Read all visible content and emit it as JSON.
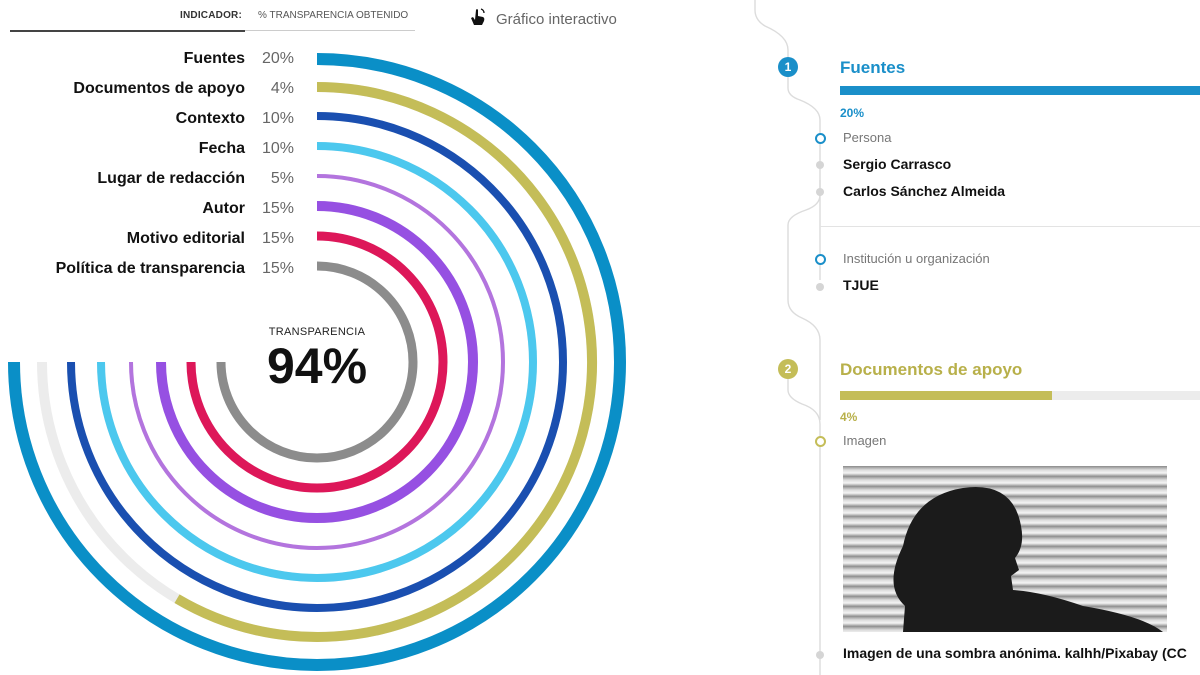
{
  "header": {
    "indicator_label": "INDICADOR:",
    "percent_label": "% TRANSPARENCIA OBTENIDO",
    "interactive_label": "Gráfico interactivo",
    "interactive_icon": "hand-pointer-icon"
  },
  "center": {
    "title": "TRANSPARENCIA",
    "value": "94%"
  },
  "chart_data": {
    "type": "radial-bar",
    "title": "TRANSPARENCIA",
    "total": "94%",
    "categories": [
      "Fuentes",
      "Documentos de apoyo",
      "Contexto",
      "Fecha",
      "Lugar de redacción",
      "Autor",
      "Motivo editorial",
      "Política de transparencia"
    ],
    "values": [
      20,
      4,
      10,
      10,
      5,
      15,
      15,
      15
    ],
    "value_labels": [
      "20%",
      "4%",
      "10%",
      "10%",
      "5%",
      "15%",
      "15%",
      "15%"
    ],
    "colors": [
      "#0a8fc7",
      "#c4bd58",
      "#1a4fb0",
      "#4cc8ee",
      "#b374de",
      "#9650e2",
      "#dd1759",
      "#8c8c8c"
    ],
    "track_color": "#ececec",
    "visible_fraction": [
      1.0,
      0.78,
      1.0,
      1.0,
      1.0,
      1.0,
      1.0,
      1.0
    ]
  },
  "timeline": {
    "sections": [
      {
        "number": "1",
        "title": "Fuentes",
        "percent": "20%",
        "fill_fraction": 1.0,
        "color": "#1a8fc9",
        "groups": [
          {
            "label": "Persona",
            "items": [
              "Sergio Carrasco",
              "Carlos Sánchez Almeida"
            ]
          },
          {
            "label": "Institución u organización",
            "items": [
              "TJUE"
            ]
          }
        ]
      },
      {
        "number": "2",
        "title": "Documentos de apoyo",
        "percent": "4%",
        "fill_fraction": 0.59,
        "color": "#c4bd58",
        "groups": [
          {
            "label": "Imagen",
            "items": [
              "Imagen de una sombra anónima. kalhh/Pixabay (CC"
            ]
          }
        ]
      }
    ]
  }
}
